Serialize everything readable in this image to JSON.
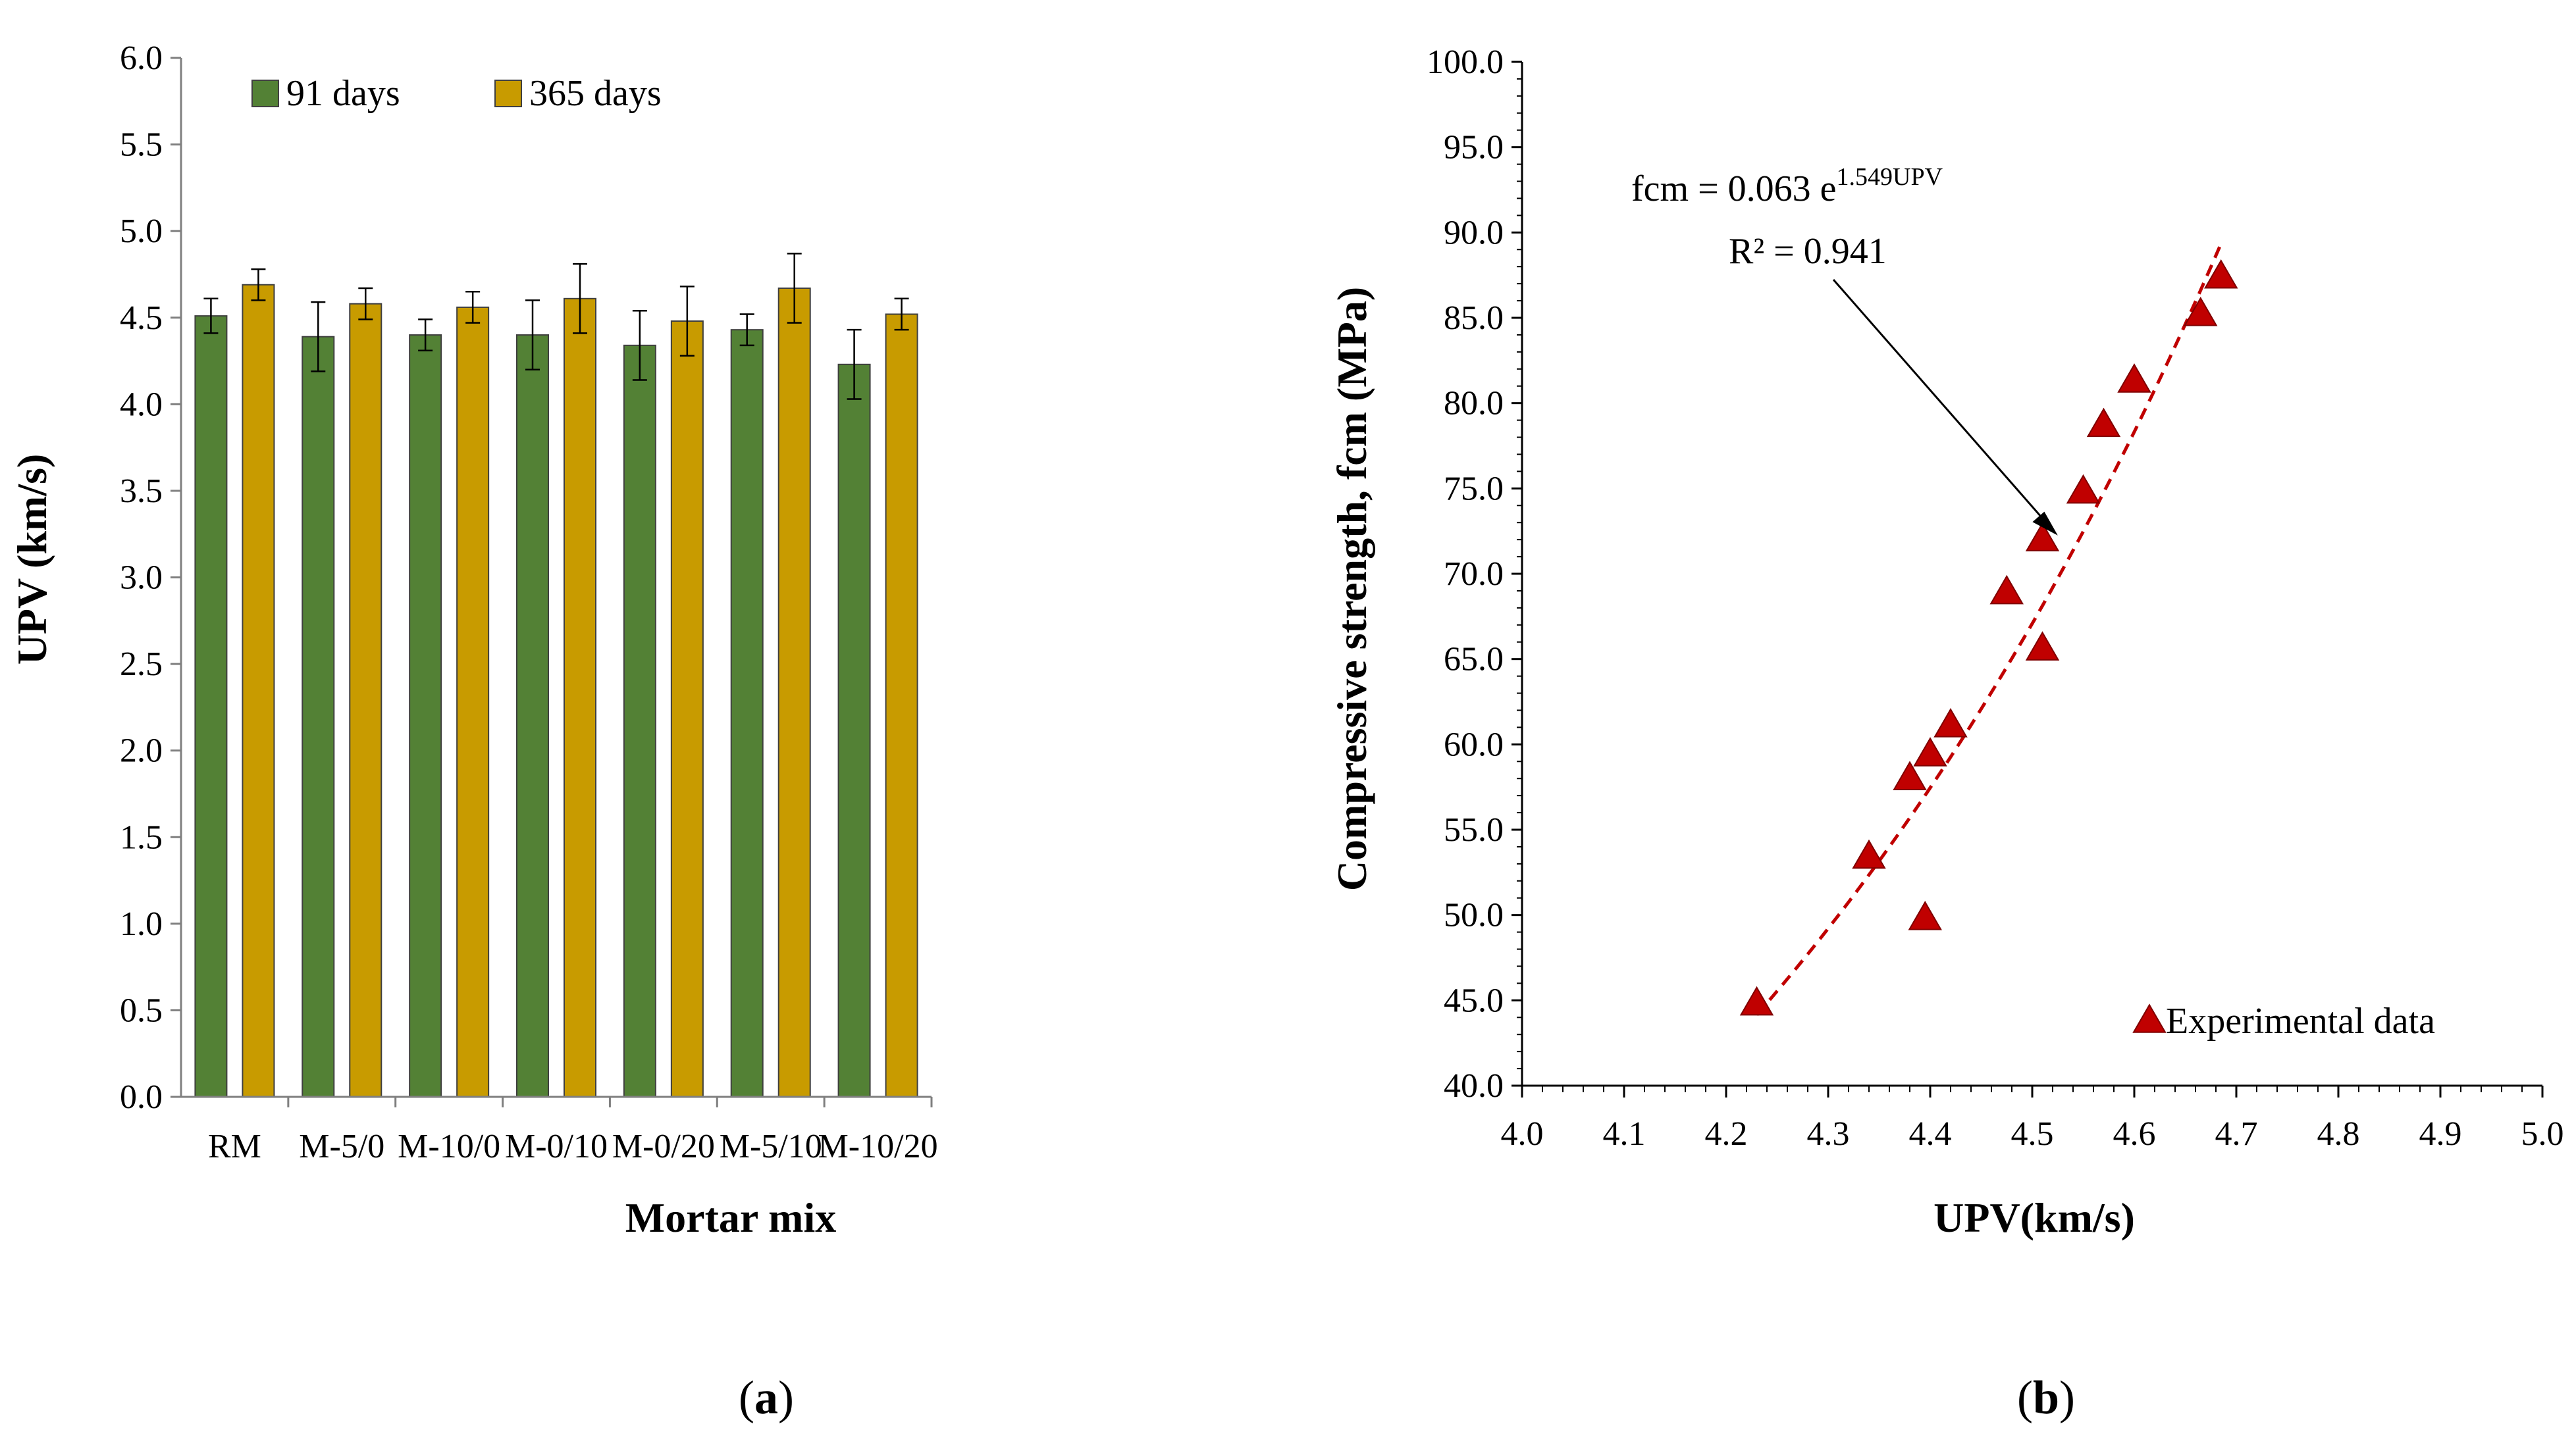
{
  "chart_data": [
    {
      "type": "bar",
      "panel_label": "(a)",
      "panel_letter": "a",
      "xlabel": "Mortar mix",
      "ylabel": "UPV (km/s)",
      "ylim": [
        0,
        6
      ],
      "yticks": [
        "0.0",
        "0.5",
        "1.0",
        "1.5",
        "2.0",
        "2.5",
        "3.0",
        "3.5",
        "4.0",
        "4.5",
        "5.0",
        "5.5",
        "6.0"
      ],
      "categories": [
        "RM",
        "M-5/0",
        "M-10/0",
        "M-0/10",
        "M-0/20",
        "M-5/10",
        "M-10/20"
      ],
      "series": [
        {
          "name": "91 days",
          "color": "#538135",
          "values": [
            4.51,
            4.39,
            4.4,
            4.4,
            4.34,
            4.43,
            4.23
          ],
          "errors": [
            0.1,
            0.2,
            0.09,
            0.2,
            0.2,
            0.09,
            0.2
          ]
        },
        {
          "name": "365 days",
          "color": "#C89B00",
          "values": [
            4.69,
            4.58,
            4.56,
            4.61,
            4.48,
            4.67,
            4.52
          ],
          "errors": [
            0.09,
            0.09,
            0.09,
            0.2,
            0.2,
            0.2,
            0.09
          ]
        }
      ],
      "legend_position": "top-left"
    },
    {
      "type": "scatter",
      "panel_label": "(b)",
      "panel_letter": "b",
      "xlabel": "UPV(km/s)",
      "ylabel": "Compressive strength, fcm (MPa)",
      "xlim": [
        4.0,
        5.0
      ],
      "ylim": [
        40,
        100
      ],
      "xticks": [
        "4.0",
        "4.1",
        "4.2",
        "4.3",
        "4.4",
        "4.5",
        "4.6",
        "4.7",
        "4.8",
        "4.9",
        "5.0"
      ],
      "yticks": [
        "40.0",
        "45.0",
        "50.0",
        "55.0",
        "60.0",
        "65.0",
        "70.0",
        "75.0",
        "80.0",
        "85.0",
        "90.0",
        "95.0",
        "100.0"
      ],
      "points": [
        {
          "x": 4.23,
          "y": 44.8
        },
        {
          "x": 4.34,
          "y": 53.4
        },
        {
          "x": 4.38,
          "y": 58.0
        },
        {
          "x": 4.395,
          "y": 49.8
        },
        {
          "x": 4.4,
          "y": 59.4
        },
        {
          "x": 4.42,
          "y": 61.1
        },
        {
          "x": 4.475,
          "y": 68.9
        },
        {
          "x": 4.51,
          "y": 72.0
        },
        {
          "x": 4.51,
          "y": 65.6
        },
        {
          "x": 4.55,
          "y": 74.8
        },
        {
          "x": 4.57,
          "y": 78.7
        },
        {
          "x": 4.6,
          "y": 81.3
        },
        {
          "x": 4.665,
          "y": 85.2
        },
        {
          "x": 4.685,
          "y": 87.4
        }
      ],
      "marker_color": "#C00000",
      "fit": {
        "type": "exponential",
        "a": 0.063,
        "b": 1.549,
        "x_range": [
          4.23,
          4.685
        ],
        "color": "#C00000",
        "style": "dashed"
      },
      "equation_prefix": "fcm = 0.063 e",
      "equation_exponent": "1.549UPV",
      "r2_text": "R² = 0.941",
      "legend_label": "Experimental data",
      "legend_position": "bottom-right"
    }
  ]
}
